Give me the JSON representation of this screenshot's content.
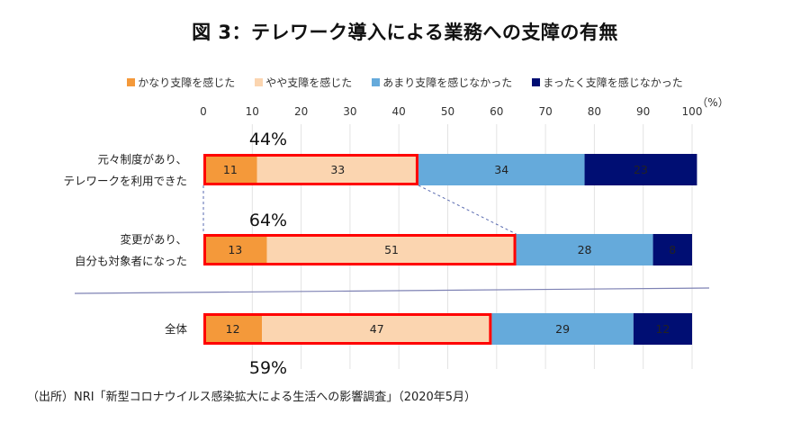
{
  "title": "図 3：テレワーク導入による業務への支障の有無",
  "source": "（出所）NRI「新型コロナウイルス感染拡大による生活への影響調査」（2020年5月）",
  "chart_data": {
    "type": "bar",
    "orientation": "horizontal",
    "stacked": true,
    "title": "図 3：テレワーク導入による業務への支障の有無",
    "unit_label": "（%）",
    "xlim": [
      0,
      100
    ],
    "x_ticks": [
      "0",
      "10",
      "20",
      "30",
      "40",
      "50",
      "60",
      "70",
      "80",
      "90",
      "100"
    ],
    "grid": true,
    "legend_position": "top",
    "categories": [
      {
        "lines": [
          "元々制度があり、",
          "テレワークを利用できた"
        ]
      },
      {
        "lines": [
          "変更があり、",
          "自分も対象者になった"
        ]
      },
      {
        "lines": [
          "全体"
        ]
      }
    ],
    "series": [
      {
        "name": "かなり支障を感じた",
        "color": "#F4993A",
        "values": [
          11,
          13,
          12
        ]
      },
      {
        "name": "やや支障を感じた",
        "color": "#FBD5B0",
        "values": [
          33,
          51,
          47
        ]
      },
      {
        "name": "あまり支障を感じなかった",
        "color": "#65AADB",
        "values": [
          34,
          28,
          29
        ]
      },
      {
        "name": "まったく支障を感じなかった",
        "color": "#000E73",
        "values": [
          23,
          8,
          12
        ]
      }
    ],
    "highlight_totals": [
      "44%",
      "64%",
      "59%"
    ],
    "highlight_color": "#FF0000"
  }
}
